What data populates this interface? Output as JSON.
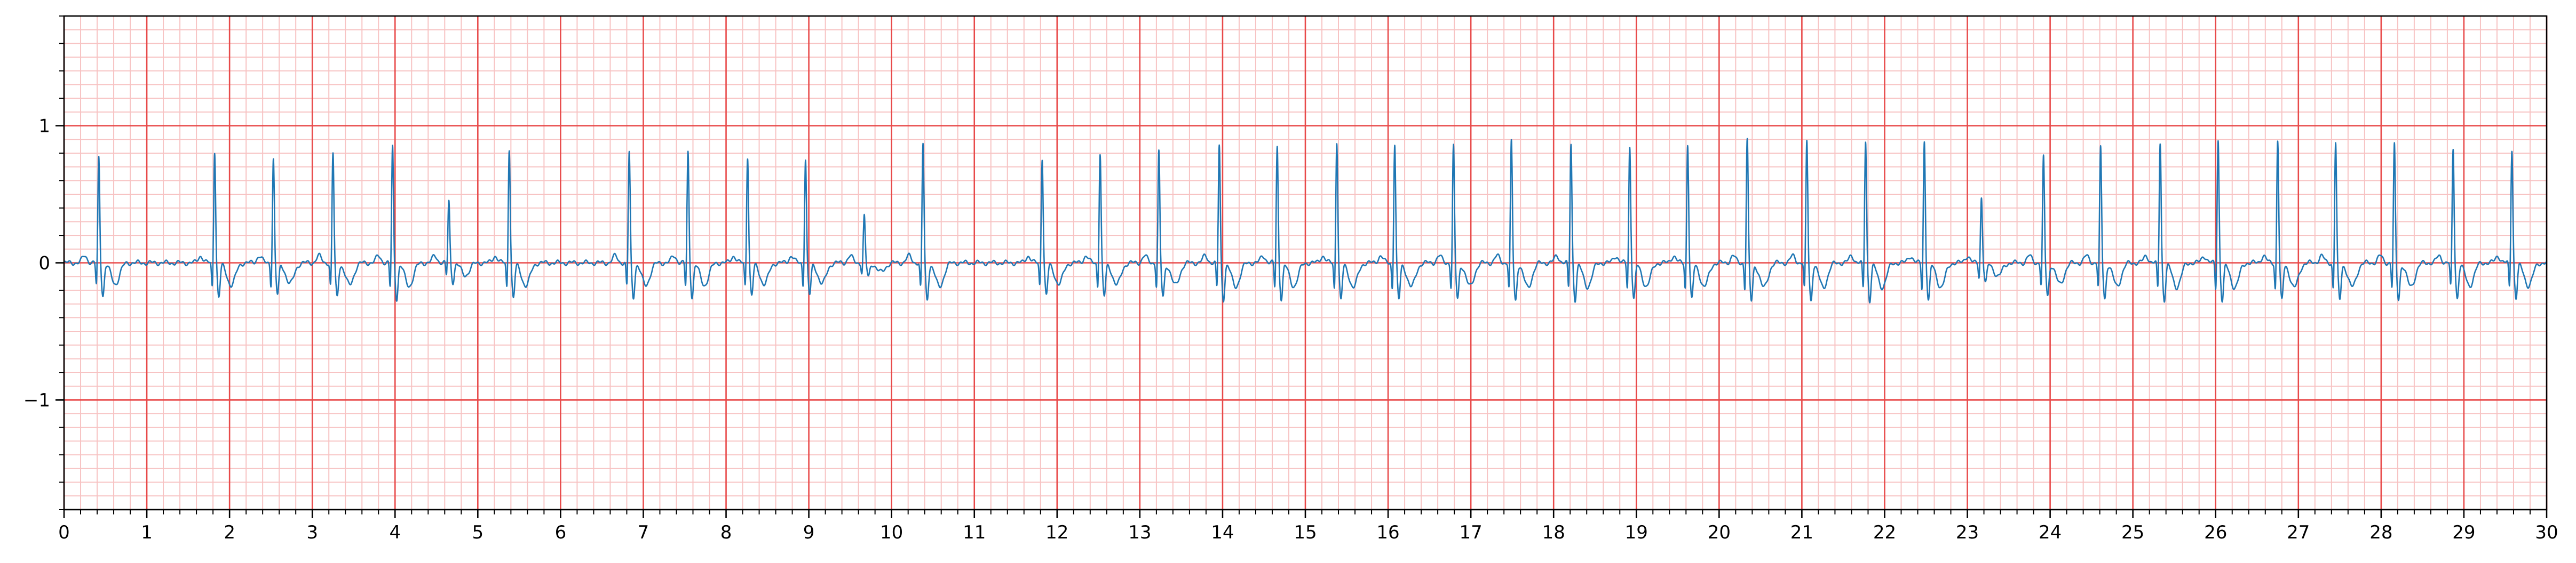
{
  "chart_data": {
    "type": "line",
    "title": "",
    "xlabel": "",
    "ylabel": "",
    "xlim": [
      0,
      30
    ],
    "ylim": [
      -1.8,
      1.8
    ],
    "x_ticks": [
      0,
      1,
      2,
      3,
      4,
      5,
      6,
      7,
      8,
      9,
      10,
      11,
      12,
      13,
      14,
      15,
      16,
      17,
      18,
      19,
      20,
      21,
      22,
      23,
      24,
      25,
      26,
      27,
      28,
      29,
      30
    ],
    "x_tick_labels": [
      "0",
      "1",
      "2",
      "3",
      "4",
      "5",
      "6",
      "7",
      "8",
      "9",
      "10",
      "11",
      "12",
      "13",
      "14",
      "15",
      "16",
      "17",
      "18",
      "19",
      "20",
      "21",
      "22",
      "23",
      "24",
      "25",
      "26",
      "27",
      "28",
      "29",
      "30"
    ],
    "y_ticks": [
      -1,
      0,
      1
    ],
    "y_tick_labels": [
      "−1",
      "0",
      "1"
    ],
    "grid": {
      "major": true,
      "minor": true,
      "x_major_step": 1,
      "x_minor_step": 0.2,
      "y_major_step": 1,
      "y_minor_step": 0.1,
      "major_color": "#e84a4a",
      "minor_color": "#f7c3c3"
    },
    "series": [
      {
        "color": "#1f77b4",
        "beats": [
          {
            "t": 0.42,
            "r": 0.77
          },
          {
            "t": 1.82,
            "r": 0.82
          },
          {
            "t": 2.53,
            "r": 0.76
          },
          {
            "t": 3.25,
            "r": 0.8
          },
          {
            "t": 3.97,
            "r": 0.85
          },
          {
            "t": 4.65,
            "r": 0.45
          },
          {
            "t": 5.38,
            "r": 0.84
          },
          {
            "t": 6.83,
            "r": 0.81
          },
          {
            "t": 7.54,
            "r": 0.81
          },
          {
            "t": 8.26,
            "r": 0.78
          },
          {
            "t": 8.96,
            "r": 0.76
          },
          {
            "t": 9.67,
            "r": 0.34
          },
          {
            "t": 10.38,
            "r": 0.87
          },
          {
            "t": 11.82,
            "r": 0.77
          },
          {
            "t": 12.52,
            "r": 0.8
          },
          {
            "t": 13.23,
            "r": 0.81
          },
          {
            "t": 13.96,
            "r": 0.86
          },
          {
            "t": 14.66,
            "r": 0.85
          },
          {
            "t": 15.38,
            "r": 0.89
          },
          {
            "t": 16.08,
            "r": 0.87
          },
          {
            "t": 16.79,
            "r": 0.85
          },
          {
            "t": 17.49,
            "r": 0.89
          },
          {
            "t": 18.21,
            "r": 0.87
          },
          {
            "t": 18.92,
            "r": 0.85
          },
          {
            "t": 19.62,
            "r": 0.87
          },
          {
            "t": 20.34,
            "r": 0.9
          },
          {
            "t": 21.06,
            "r": 0.89
          },
          {
            "t": 21.77,
            "r": 0.89
          },
          {
            "t": 22.48,
            "r": 0.89
          },
          {
            "t": 23.17,
            "r": 0.48
          },
          {
            "t": 23.92,
            "r": 0.77
          },
          {
            "t": 24.61,
            "r": 0.84
          },
          {
            "t": 25.33,
            "r": 0.88
          },
          {
            "t": 26.03,
            "r": 0.9
          },
          {
            "t": 26.75,
            "r": 0.9
          },
          {
            "t": 27.45,
            "r": 0.88
          },
          {
            "t": 28.16,
            "r": 0.86
          },
          {
            "t": 28.87,
            "r": 0.83
          },
          {
            "t": 29.58,
            "r": 0.83
          }
        ]
      }
    ]
  }
}
